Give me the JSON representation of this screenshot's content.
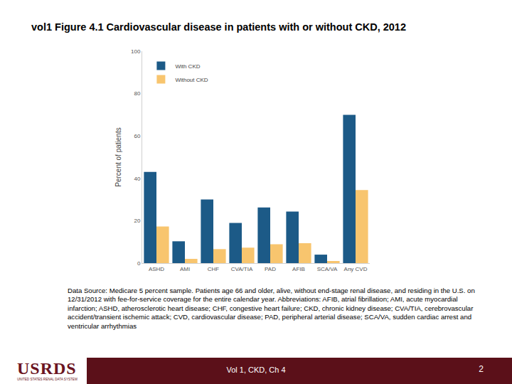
{
  "chart_data": {
    "type": "bar",
    "title": "vol1  Figure 4.1  Cardiovascular disease in patients with or without CKD, 2012",
    "y_label": "Percent of patients",
    "categories": [
      "ASHD",
      "AMI",
      "CHF",
      "CVA/TIA",
      "PAD",
      "AFIB",
      "SCA/VA",
      "Any CVD"
    ],
    "series": [
      {
        "name": "With CKD",
        "color": "#1c5a87",
        "values": [
          43,
          10.3,
          30,
          19,
          26.3,
          24.3,
          4,
          70
        ]
      },
      {
        "name": "Without CKD",
        "color": "#f8c56e",
        "values": [
          17.3,
          2,
          6.6,
          7.3,
          8.9,
          9.4,
          1,
          34.5
        ]
      }
    ],
    "ylim": [
      0,
      100
    ],
    "yticks": [
      0,
      20,
      40,
      60,
      80,
      100
    ],
    "grid": false,
    "legend": "top left"
  },
  "source": "Data Source: Medicare 5 percent sample. Patients age 66 and older, alive, without end-stage renal disease, and residing in the U.S. on 12/31/2012 with fee-for-service coverage for the entire calendar year. Abbreviations: AFIB, atrial fibrillation; AMI, acute myocardial infarction; ASHD, atherosclerotic heart disease; CHF, congestive heart failure; CKD, chronic kidney disease; CVA/TIA, cerebrovascular accident/transient ischemic attack; CVD, cardiovascular disease; PAD, peripheral arterial disease; SCA/VA, sudden cardiac arrest and ventricular arrhythmias",
  "footer": {
    "logo": "USRDS",
    "logo_subtitle": "UNITED STATES RENAL DATA SYSTEM",
    "center": "Vol 1, CKD, Ch 4",
    "page": "2"
  }
}
